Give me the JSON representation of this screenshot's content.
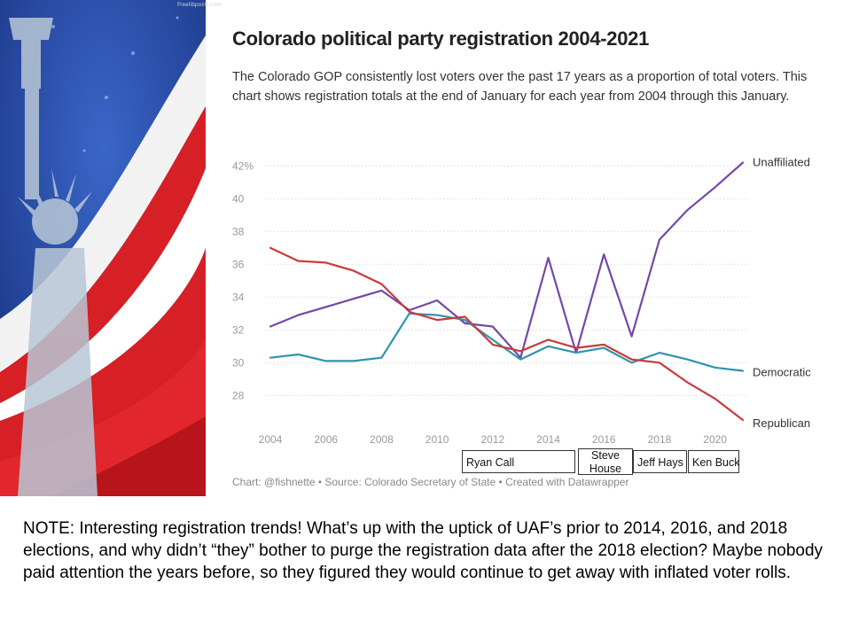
{
  "header": {
    "title": "Colorado political party registration 2004-2021",
    "subtitle": "The Colorado GOP consistently lost voters over the past 17 years as a proportion of total voters. This chart shows registration totals at the end of January for each year from 2004 through this January."
  },
  "watermark": "Freelibpoint.com",
  "credit": "Chart: @fishnette • Source: Colorado Secretary of State • Created with Datawrapper",
  "annotations": [
    {
      "label": "Ryan Call"
    },
    {
      "label": "Steve House"
    },
    {
      "label": "Jeff Hays"
    },
    {
      "label": "Ken Buck"
    }
  ],
  "note": "NOTE:  Interesting registration trends!  What’s up with the uptick of UAF’s prior to 2014, 2016, and 2018 elections, and why didn’t “they” bother to purge the registration data after the 2018 election?  Maybe nobody paid attention the years before, so they figured they would continue to get away with inflated voter rolls.",
  "colors": {
    "unaffiliated": "#7547a8",
    "democratic": "#2f93b0",
    "republican": "#c93b3b",
    "flag_blue": "#1d3f9e",
    "flag_red": "#d71f26"
  },
  "chart_data": {
    "type": "line",
    "x": [
      2004,
      2005,
      2006,
      2007,
      2008,
      2009,
      2010,
      2011,
      2012,
      2013,
      2014,
      2015,
      2016,
      2017,
      2018,
      2019,
      2020,
      2021
    ],
    "x_ticks": [
      "2004",
      "2006",
      "2008",
      "2010",
      "2012",
      "2014",
      "2016",
      "2018",
      "2020"
    ],
    "y_ticks": [
      "42%",
      "40",
      "38",
      "36",
      "34",
      "32",
      "30",
      "28"
    ],
    "ylim": [
      26.5,
      42.5
    ],
    "grid": true,
    "series": [
      {
        "name": "Unaffiliated",
        "color": "#7547a8",
        "values": [
          32.2,
          32.9,
          33.4,
          33.9,
          34.4,
          33.2,
          33.8,
          32.4,
          32.2,
          30.3,
          36.4,
          30.6,
          36.6,
          31.6,
          37.5,
          39.3,
          40.7,
          42.2
        ]
      },
      {
        "name": "Democratic",
        "color": "#2f93b0",
        "values": [
          30.3,
          30.5,
          30.1,
          30.1,
          30.3,
          33.0,
          32.9,
          32.6,
          31.4,
          30.2,
          31.0,
          30.6,
          30.9,
          30.0,
          30.6,
          30.2,
          29.7,
          29.5
        ]
      },
      {
        "name": "Republican",
        "color": "#c93b3b",
        "values": [
          37.0,
          36.2,
          36.1,
          35.6,
          34.8,
          33.1,
          32.6,
          32.8,
          31.1,
          30.7,
          31.4,
          30.9,
          31.1,
          30.2,
          30.0,
          28.8,
          27.8,
          26.5
        ]
      }
    ]
  }
}
